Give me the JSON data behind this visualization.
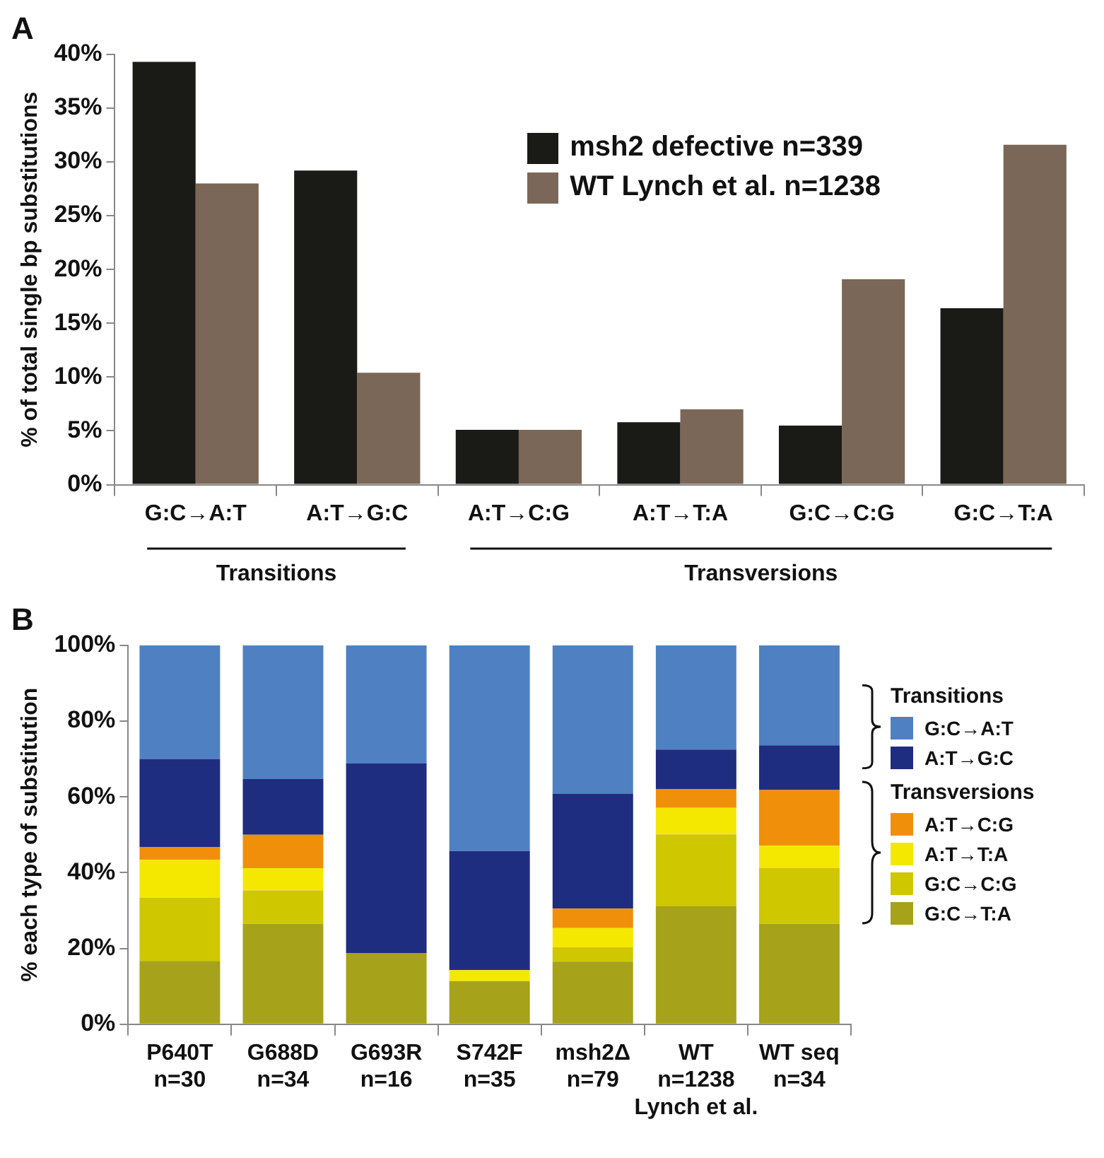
{
  "chart_data": [
    {
      "type": "bar",
      "title": "A",
      "ylabel": "% of total single bp substitutions",
      "categories": [
        "G:C→A:T",
        "A:T→G:C",
        "A:T→C:G",
        "A:T→T:A",
        "G:C→C:G",
        "G:C→T:A"
      ],
      "series": [
        {
          "name": "msh2 defective n=339",
          "color": "#1a1a16",
          "values": [
            39.3,
            29.2,
            5.1,
            5.8,
            5.5,
            16.4
          ]
        },
        {
          "name": "WT Lynch et al. n=1238",
          "color": "#7b6757",
          "values": [
            28.0,
            10.4,
            5.1,
            7.0,
            19.1,
            31.6
          ]
        }
      ],
      "ylim": [
        0,
        40
      ],
      "yticks": [
        {
          "value": 0,
          "label": "0%"
        },
        {
          "value": 5,
          "label": "5%"
        },
        {
          "value": 10,
          "label": "10%"
        },
        {
          "value": 15,
          "label": "15%"
        },
        {
          "value": 20,
          "label": "20%"
        },
        {
          "value": 25,
          "label": "25%"
        },
        {
          "value": 30,
          "label": "30%"
        },
        {
          "value": 35,
          "label": "35%"
        },
        {
          "value": 40,
          "label": "40%"
        }
      ],
      "grid": false,
      "legend": "top right",
      "annotations": [
        "Transitions",
        "Transversions"
      ]
    },
    {
      "type": "bar",
      "title": "B",
      "ylabel": "% each type of substitution",
      "stacked": true,
      "categories": [
        "P640T\nn=30",
        "G688D\nn=34",
        "G693R\nn=16",
        "S742F\nn=35",
        "msh2Δ\nn=79",
        "WT\nn=1238\nLynch et al.",
        "WT seq\nn=34"
      ],
      "series": [
        {
          "name": "G:C→T:A",
          "color": "#a6a21a",
          "values": [
            16.7,
            26.5,
            18.8,
            11.4,
            16.5,
            31.1,
            26.5
          ]
        },
        {
          "name": "G:C→C:G",
          "color": "#cfc700",
          "values": [
            16.7,
            8.8,
            0,
            0,
            3.8,
            19.0,
            14.7
          ]
        },
        {
          "name": "A:T→T:A",
          "color": "#f5e800",
          "values": [
            10.0,
            5.9,
            0,
            2.9,
            5.1,
            7.0,
            5.9
          ]
        },
        {
          "name": "A:T→C:G",
          "color": "#f0900a",
          "values": [
            3.3,
            8.8,
            0,
            0,
            5.1,
            5.0,
            14.7
          ]
        },
        {
          "name": "A:T→G:C",
          "color": "#1f2d80",
          "values": [
            23.3,
            14.7,
            50.0,
            31.4,
            30.4,
            10.4,
            11.8
          ]
        },
        {
          "name": "G:C→A:T",
          "color": "#4f81c2",
          "values": [
            30.0,
            35.3,
            31.2,
            54.3,
            39.1,
            27.5,
            26.4
          ]
        }
      ],
      "ylim": [
        0,
        100
      ],
      "yticks": [
        {
          "value": 0,
          "label": "0%"
        },
        {
          "value": 20,
          "label": "20%"
        },
        {
          "value": 40,
          "label": "40%"
        },
        {
          "value": 60,
          "label": "60%"
        },
        {
          "value": 80,
          "label": "80%"
        },
        {
          "value": 100,
          "label": "100%"
        }
      ],
      "grid": false,
      "legend": "right",
      "annotations": [
        "Transitions",
        "Transversions"
      ]
    }
  ]
}
